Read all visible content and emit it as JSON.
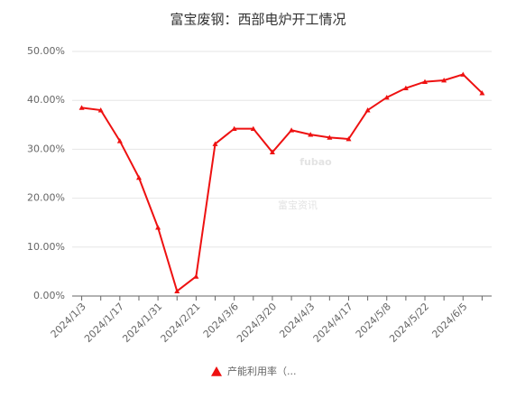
{
  "chart_data": {
    "type": "line",
    "title": "富宝废钢：西部电炉开工情况",
    "watermark": [
      "fubao",
      "富宝资讯"
    ],
    "categories": [
      "2024/1/3",
      null,
      "2024/1/17",
      null,
      "2024/1/31",
      null,
      "2024/2/21",
      null,
      "2024/3/6",
      null,
      "2024/3/20",
      null,
      "2024/4/3",
      null,
      "2024/4/17",
      null,
      "2024/5/8",
      null,
      "2024/5/22",
      null,
      "2024/6/5",
      null
    ],
    "series": [
      {
        "name": "产能利用率（...",
        "color": "#ee1111",
        "values": [
          38.5,
          38.0,
          31.7,
          24.2,
          14.0,
          1.0,
          4.0,
          31.1,
          34.2,
          34.2,
          29.4,
          33.9,
          33.0,
          32.4,
          32.1,
          38.0,
          40.6,
          42.5,
          43.8,
          44.1,
          45.3,
          41.5
        ]
      }
    ],
    "ylim": [
      0,
      50
    ],
    "yticks": [
      {
        "value": 0,
        "label": "0.00%"
      },
      {
        "value": 10,
        "label": "10.00%"
      },
      {
        "value": 20,
        "label": "20.00%"
      },
      {
        "value": 30,
        "label": "30.00%"
      },
      {
        "value": 40,
        "label": "40.00%"
      },
      {
        "value": 50,
        "label": "50.00%"
      }
    ],
    "grid": true,
    "legend": "bottom"
  }
}
